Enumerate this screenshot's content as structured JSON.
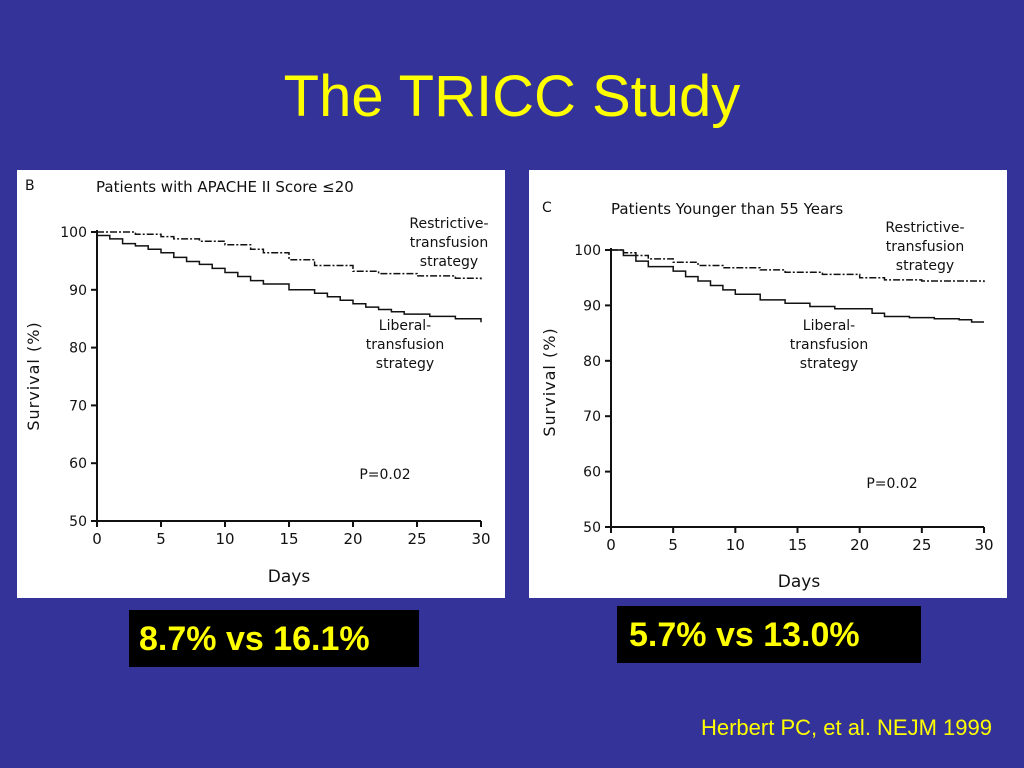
{
  "slide": {
    "title": "The TRICC Study",
    "citation": "Herbert PC, et al. NEJM 1999",
    "background": "#33339a",
    "accent": "#ffff00"
  },
  "results": [
    {
      "text": "8.7% vs 16.1%"
    },
    {
      "text": "5.7% vs 13.0%"
    }
  ],
  "chart_data": [
    {
      "type": "line",
      "panel_letter": "B",
      "title": "Patients with APACHE II Score ≤20",
      "xlabel": "Days",
      "ylabel": "Survival (%)",
      "xlim": [
        0,
        30
      ],
      "ylim": [
        50,
        100
      ],
      "xticks": [
        0,
        5,
        10,
        15,
        20,
        25,
        30
      ],
      "yticks": [
        50,
        60,
        70,
        80,
        90,
        100
      ],
      "grid": false,
      "annotation": "P=0.02",
      "series": [
        {
          "name": "Restrictive-transfusion strategy",
          "label_lines": [
            "Restrictive-",
            "transfusion",
            "strategy"
          ],
          "style": "dashdot",
          "x": [
            0,
            3,
            5,
            6,
            8,
            10,
            12,
            13,
            15,
            17,
            20,
            22,
            25,
            28,
            30
          ],
          "y": [
            100,
            99.6,
            99.2,
            98.8,
            98.4,
            97.8,
            97,
            96.4,
            95.2,
            94.2,
            93.2,
            92.8,
            92.4,
            92,
            91.8
          ]
        },
        {
          "name": "Liberal-transfusion strategy",
          "label_lines": [
            "Liberal-",
            "transfusion",
            "strategy"
          ],
          "style": "solid",
          "x": [
            0,
            1,
            2,
            3,
            4,
            5,
            6,
            7,
            8,
            9,
            10,
            11,
            12,
            13,
            15,
            17,
            18,
            19,
            20,
            21,
            22,
            23,
            24,
            26,
            28,
            30
          ],
          "y": [
            99.4,
            98.8,
            98,
            97.6,
            97,
            96.4,
            95.6,
            94.9,
            94.4,
            93.7,
            93,
            92.3,
            91.6,
            91,
            90,
            89.4,
            88.8,
            88.2,
            87.6,
            87,
            86.6,
            86.2,
            85.8,
            85.4,
            85,
            84.4
          ]
        }
      ]
    },
    {
      "type": "line",
      "panel_letter": "C",
      "title": "Patients Younger than 55 Years",
      "xlabel": "Days",
      "ylabel": "Survival (%)",
      "xlim": [
        0,
        30
      ],
      "ylim": [
        50,
        100
      ],
      "xticks": [
        0,
        5,
        10,
        15,
        20,
        25,
        30
      ],
      "yticks": [
        50,
        60,
        70,
        80,
        90,
        100
      ],
      "grid": false,
      "annotation": "P=0.02",
      "series": [
        {
          "name": "Restrictive-transfusion strategy",
          "label_lines": [
            "Restrictive-",
            "transfusion",
            "strategy"
          ],
          "style": "dashdot",
          "x": [
            0,
            1,
            2,
            3,
            5,
            7,
            9,
            12,
            14,
            17,
            20,
            22,
            25,
            30
          ],
          "y": [
            100,
            99.5,
            99,
            98.4,
            97.8,
            97.2,
            96.8,
            96.4,
            96,
            95.6,
            95,
            94.6,
            94.4,
            94.2
          ]
        },
        {
          "name": "Liberal-transfusion strategy",
          "label_lines": [
            "Liberal-",
            "transfusion",
            "strategy"
          ],
          "style": "solid",
          "x": [
            0,
            1,
            2,
            3,
            5,
            6,
            7,
            8,
            9,
            10,
            12,
            14,
            16,
            18,
            20,
            21,
            22,
            24,
            26,
            28,
            29,
            30
          ],
          "y": [
            100,
            99,
            98,
            97,
            96.2,
            95.2,
            94.4,
            93.6,
            92.8,
            92,
            91,
            90.4,
            89.8,
            89.4,
            89.4,
            88.6,
            88,
            87.8,
            87.6,
            87.4,
            87,
            87
          ]
        }
      ]
    }
  ]
}
